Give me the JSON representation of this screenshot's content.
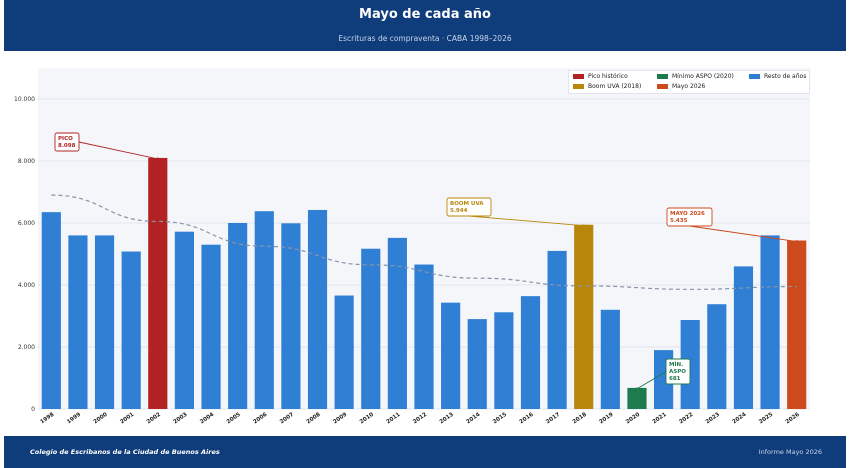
{
  "header": {
    "title": "Mayo de cada año",
    "subtitle": "Escrituras de compraventa · CABA 1998–2026"
  },
  "footer": {
    "left": "Colegio de Escribanos de la Ciudad de Buenos Aires",
    "right": "Informe Mayo 2026"
  },
  "legend": {
    "items": [
      {
        "label": "Pico histórico",
        "color": "#b22222"
      },
      {
        "label": "Mínimo ASPO (2020)",
        "color": "#1e7b4d"
      },
      {
        "label": "Resto de años",
        "color": "#2f7fd4"
      },
      {
        "label": "Boom UVA (2018)",
        "color": "#b8860b"
      },
      {
        "label": "Mayo 2026",
        "color": "#cc4a1c"
      }
    ]
  },
  "chart_data": {
    "type": "bar",
    "categories": [
      "1998",
      "1999",
      "2000",
      "2001",
      "2002",
      "2003",
      "2004",
      "2005",
      "2006",
      "2007",
      "2008",
      "2009",
      "2010",
      "2011",
      "2012",
      "2013",
      "2014",
      "2015",
      "2016",
      "2017",
      "2018",
      "2019",
      "2020",
      "2021",
      "2022",
      "2023",
      "2024",
      "2025",
      "2026"
    ],
    "series": [
      {
        "values": [
          6350,
          5600,
          5600,
          5080,
          8098,
          5720,
          5300,
          6000,
          6380,
          5990,
          6420,
          3660,
          5170,
          5520,
          4660,
          3430,
          2900,
          3120,
          3640,
          5100,
          5944,
          3200,
          681,
          1900,
          2870,
          3380,
          4600,
          5600,
          5435
        ]
      }
    ],
    "colors": {
      "default": "#2f7fd4",
      "peak": "#b22222",
      "boom": "#b8860b",
      "aspo": "#1e7b4d",
      "latest": "#cc4a1c",
      "trend": "#8a94a8"
    },
    "highlight": {
      "2002": "peak",
      "2018": "boom",
      "2020": "aspo",
      "2026": "latest"
    },
    "ylim": [
      0,
      11000
    ],
    "yticks": [
      0,
      2000,
      4000,
      6000,
      8000,
      10000
    ],
    "ytick_labels": [
      "0",
      "2.000",
      "4.000",
      "6.000",
      "8.000",
      "10.000"
    ],
    "trend": {
      "x": [
        1998,
        2002,
        2006,
        2010,
        2014,
        2018,
        2022,
        2026
      ],
      "y": [
        6900,
        6050,
        5250,
        4650,
        4220,
        3970,
        3860,
        3950
      ]
    },
    "grid": true,
    "legend_position": "top-right",
    "annotations": [
      {
        "lines": [
          "PICO",
          "8.098"
        ],
        "target": "2002",
        "colorKey": "peak"
      },
      {
        "lines": [
          "BOOM UVA",
          "5.944"
        ],
        "target": "2018",
        "colorKey": "boom"
      },
      {
        "lines": [
          "MÍN.",
          "ASPO",
          "681"
        ],
        "target": "2020",
        "colorKey": "aspo"
      },
      {
        "lines": [
          "MAYO 2026",
          "5.435"
        ],
        "target": "2026",
        "colorKey": "latest"
      }
    ]
  }
}
